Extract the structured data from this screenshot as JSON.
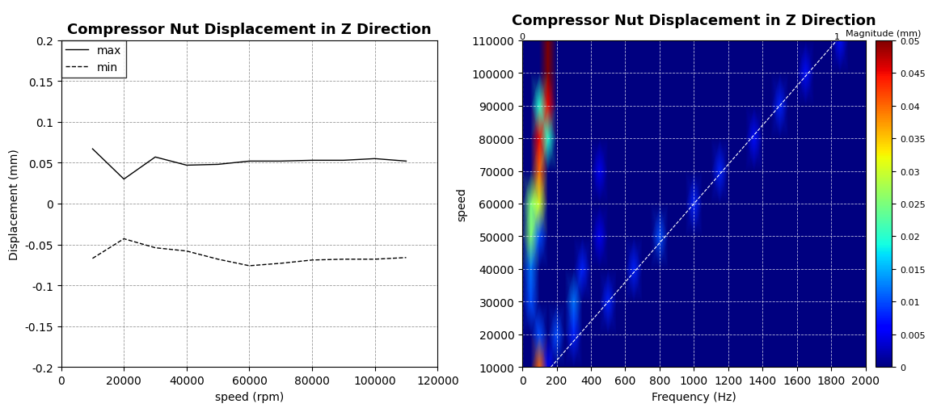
{
  "chart_data": [
    {
      "type": "line",
      "title": "Compressor Nut Displacement in Z Direction",
      "x_label": "speed (rpm)",
      "y_label": "Displacement (mm)",
      "x": [
        10000,
        20000,
        30000,
        40000,
        50000,
        60000,
        70000,
        80000,
        90000,
        100000,
        110000
      ],
      "series": [
        {
          "name": "max",
          "color": "#000000",
          "line_style": "solid",
          "values": [
            0.067,
            0.03,
            0.057,
            0.047,
            0.048,
            0.052,
            0.052,
            0.053,
            0.053,
            0.055,
            0.052
          ]
        },
        {
          "name": "min",
          "color": "#000000",
          "line_style": "dashed",
          "values": [
            -0.067,
            -0.043,
            -0.054,
            -0.058,
            -0.068,
            -0.076,
            -0.073,
            -0.069,
            -0.068,
            -0.068,
            -0.066
          ]
        }
      ],
      "xlim": [
        0,
        120000
      ],
      "xticks": [
        0,
        20000,
        40000,
        60000,
        80000,
        100000,
        120000
      ],
      "ylim": [
        -0.2,
        0.2
      ],
      "yticks": [
        -0.2,
        -0.15,
        -0.1,
        -0.05,
        0,
        0.05,
        0.1,
        0.15,
        0.2
      ],
      "grid": true,
      "legend": "upper left"
    },
    {
      "type": "heatmap",
      "title": "Compressor Nut Displacement in Z Direction",
      "x_label": "Frequency (Hz)",
      "y_label": "speed",
      "x": [
        0,
        50,
        100,
        150,
        200,
        250,
        300,
        350,
        400,
        450,
        500,
        550,
        600,
        650,
        700,
        750,
        800,
        850,
        900,
        950,
        1000,
        1050,
        1100,
        1150,
        1200,
        1250,
        1300,
        1350,
        1400,
        1450,
        1500,
        1550,
        1600,
        1650,
        1700,
        1750,
        1800,
        1850,
        1900,
        1950,
        2000
      ],
      "y": [
        10000,
        20000,
        30000,
        40000,
        50000,
        60000,
        70000,
        80000,
        90000,
        100000,
        110000
      ],
      "cells": [
        [
          0,
          0,
          0.04,
          0.005,
          0,
          0,
          0,
          0,
          0,
          0,
          0,
          0,
          0,
          0,
          0,
          0,
          0,
          0,
          0,
          0,
          0,
          0,
          0,
          0,
          0,
          0,
          0,
          0,
          0,
          0,
          0,
          0,
          0,
          0,
          0,
          0,
          0,
          0,
          0,
          0,
          0
        ],
        [
          0,
          0,
          0.01,
          0,
          0.01,
          0,
          0.008,
          0,
          0,
          0,
          0,
          0,
          0,
          0,
          0,
          0,
          0,
          0,
          0,
          0,
          0,
          0,
          0,
          0,
          0,
          0,
          0,
          0,
          0,
          0,
          0,
          0,
          0,
          0,
          0,
          0,
          0,
          0,
          0,
          0,
          0
        ],
        [
          0,
          0.01,
          0,
          0,
          0,
          0,
          0.012,
          0,
          0,
          0,
          0.008,
          0,
          0,
          0,
          0,
          0,
          0,
          0,
          0,
          0,
          0,
          0,
          0,
          0,
          0,
          0,
          0,
          0,
          0,
          0,
          0,
          0,
          0,
          0,
          0,
          0,
          0,
          0,
          0,
          0,
          0
        ],
        [
          0,
          0.012,
          0,
          0,
          0,
          0,
          0,
          0.008,
          0,
          0,
          0,
          0,
          0,
          0.008,
          0,
          0,
          0,
          0,
          0,
          0,
          0,
          0,
          0,
          0,
          0,
          0,
          0,
          0,
          0,
          0,
          0,
          0,
          0,
          0,
          0,
          0,
          0,
          0,
          0,
          0,
          0
        ],
        [
          0,
          0.025,
          0.01,
          0,
          0,
          0,
          0,
          0,
          0,
          0.005,
          0,
          0,
          0,
          0,
          0,
          0,
          0.01,
          0,
          0,
          0,
          0,
          0,
          0,
          0,
          0,
          0,
          0,
          0,
          0,
          0,
          0,
          0,
          0,
          0,
          0,
          0,
          0,
          0,
          0,
          0,
          0
        ],
        [
          0,
          0.025,
          0.03,
          0,
          0,
          0,
          0,
          0,
          0,
          0,
          0,
          0,
          0,
          0,
          0,
          0,
          0,
          0,
          0,
          0,
          0.008,
          0,
          0,
          0,
          0,
          0,
          0,
          0,
          0,
          0,
          0,
          0,
          0,
          0,
          0,
          0,
          0,
          0,
          0,
          0,
          0
        ],
        [
          0,
          0,
          0.04,
          0,
          0,
          0,
          0,
          0,
          0,
          0.005,
          0,
          0,
          0,
          0,
          0,
          0,
          0,
          0,
          0,
          0,
          0,
          0,
          0,
          0.008,
          0,
          0,
          0,
          0,
          0,
          0,
          0,
          0,
          0,
          0,
          0,
          0,
          0,
          0,
          0,
          0,
          0
        ],
        [
          0,
          0,
          0.045,
          0.02,
          0,
          0,
          0,
          0,
          0,
          0,
          0,
          0,
          0,
          0,
          0,
          0,
          0,
          0,
          0,
          0,
          0,
          0,
          0,
          0,
          0,
          0,
          0,
          0.007,
          0,
          0,
          0,
          0,
          0,
          0,
          0,
          0,
          0,
          0,
          0,
          0,
          0
        ],
        [
          0,
          0,
          0.02,
          0.045,
          0,
          0,
          0,
          0,
          0,
          0,
          0,
          0,
          0,
          0,
          0,
          0,
          0,
          0,
          0,
          0,
          0,
          0,
          0,
          0,
          0,
          0,
          0,
          0,
          0,
          0,
          0.008,
          0,
          0,
          0,
          0,
          0,
          0,
          0,
          0,
          0,
          0
        ],
        [
          0,
          0,
          0,
          0.05,
          0,
          0,
          0,
          0,
          0,
          0,
          0,
          0,
          0,
          0,
          0,
          0,
          0,
          0,
          0,
          0,
          0,
          0,
          0,
          0,
          0,
          0,
          0,
          0,
          0,
          0,
          0,
          0,
          0,
          0.007,
          0,
          0,
          0,
          0,
          0,
          0,
          0
        ],
        [
          0,
          0,
          0,
          0.05,
          0,
          0,
          0,
          0,
          0,
          0,
          0,
          0,
          0,
          0,
          0,
          0,
          0,
          0,
          0,
          0,
          0,
          0,
          0,
          0,
          0,
          0,
          0,
          0,
          0,
          0,
          0,
          0,
          0,
          0,
          0,
          0,
          0,
          0.007,
          0,
          0,
          0
        ]
      ],
      "xlim": [
        0,
        2000
      ],
      "xticks": [
        0,
        200,
        400,
        600,
        800,
        1000,
        1200,
        1400,
        1600,
        1800,
        2000
      ],
      "ylim": [
        10000,
        110000
      ],
      "yticks": [
        10000,
        20000,
        30000,
        40000,
        50000,
        60000,
        70000,
        80000,
        90000,
        100000,
        110000
      ],
      "grid": true,
      "order_lines": [
        {
          "label": "0",
          "x": [
            0,
            0
          ],
          "y": [
            10000,
            110000
          ]
        },
        {
          "label": "1",
          "x": [
            166.7,
            1833.3
          ],
          "y": [
            10000,
            110000
          ]
        }
      ],
      "colorbar": {
        "label": "Magnitude (mm)",
        "range": [
          0,
          0.05
        ],
        "ticks": [
          0,
          0.005,
          0.01,
          0.015,
          0.02,
          0.025,
          0.03,
          0.035,
          0.04,
          0.045,
          0.05
        ]
      }
    }
  ]
}
